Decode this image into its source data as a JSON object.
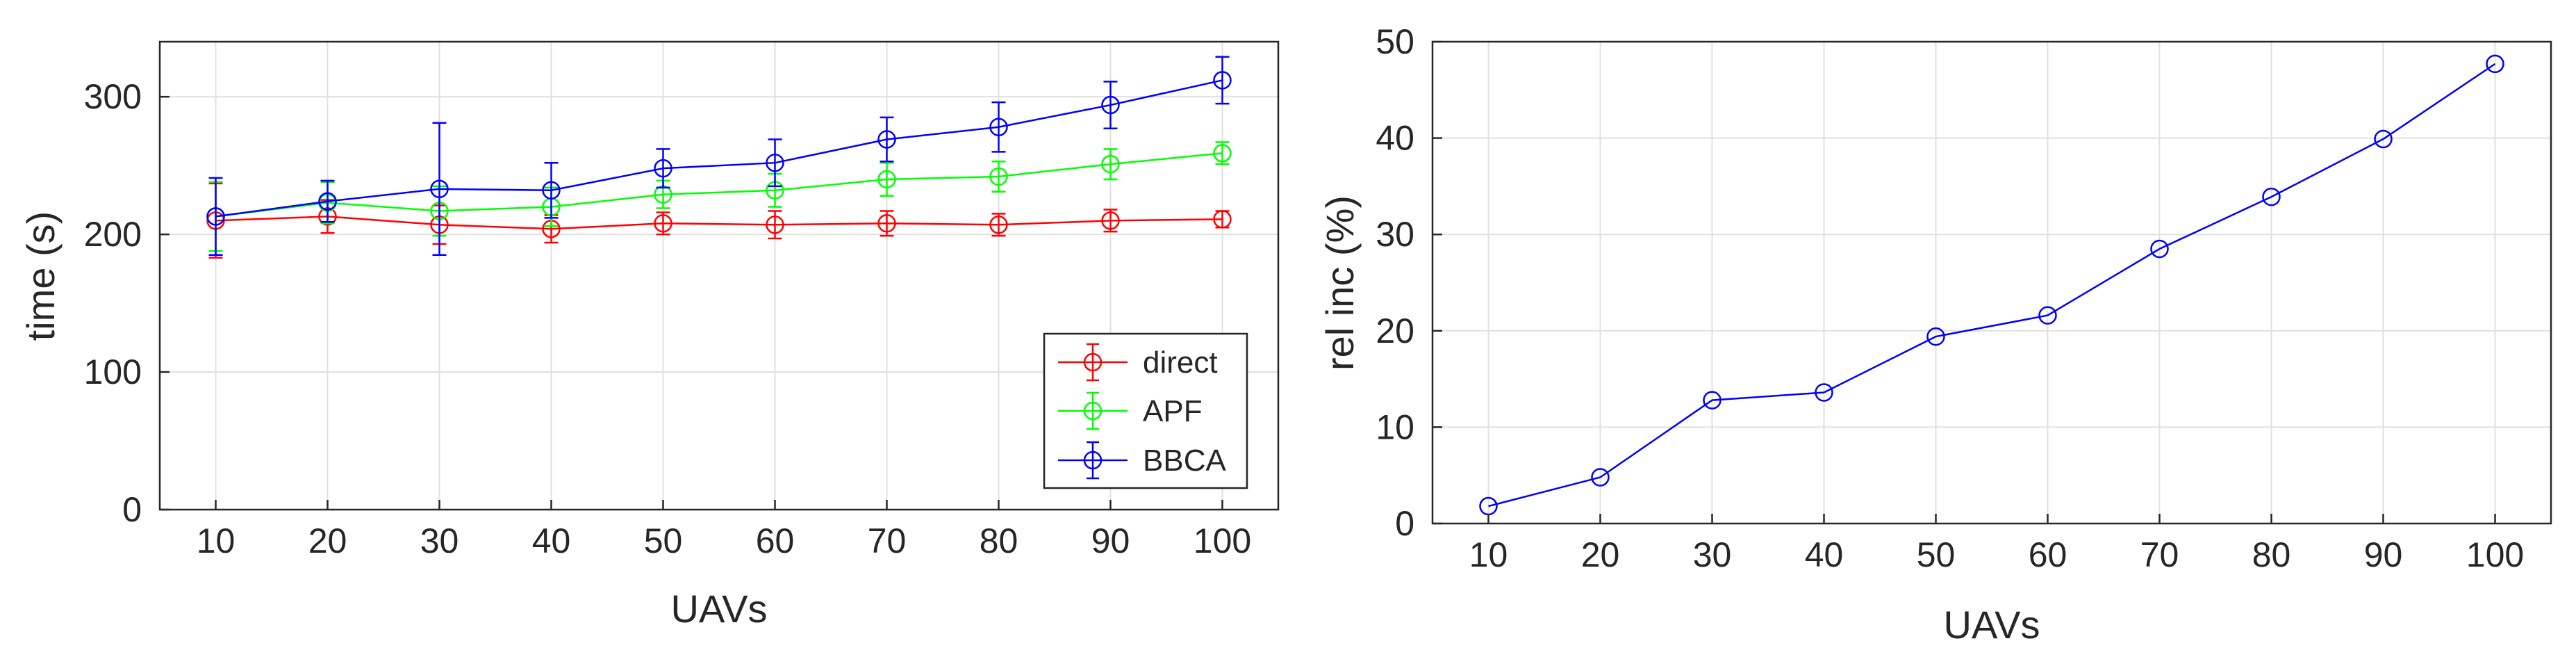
{
  "chart_data": [
    {
      "type": "line",
      "xlabel": "UAVs",
      "ylabel": "time (s)",
      "x": [
        10,
        20,
        30,
        40,
        50,
        60,
        70,
        80,
        90,
        100
      ],
      "xticks": [
        "10",
        "20",
        "30",
        "40",
        "50",
        "60",
        "70",
        "80",
        "90",
        "100"
      ],
      "xlim": [
        5,
        105
      ],
      "yticks": [
        "0",
        "100",
        "200",
        "300"
      ],
      "ylim": [
        0,
        340
      ],
      "grid": true,
      "legend_position": "bottom-right",
      "series": [
        {
          "name": "direct",
          "color": "#ff0000",
          "marker": "circle",
          "values": [
            210,
            213,
            207,
            204,
            208,
            207,
            208,
            207,
            210,
            211
          ],
          "errors": [
            27,
            12,
            14,
            10,
            8,
            10,
            9,
            8,
            8,
            6
          ]
        },
        {
          "name": "APF",
          "color": "#00ff00",
          "marker": "circle",
          "values": [
            213,
            223,
            217,
            220,
            229,
            232,
            240,
            242,
            251,
            259
          ],
          "errors": [
            25,
            15,
            18,
            14,
            10,
            12,
            12,
            11,
            11,
            8
          ]
        },
        {
          "name": "BBCA",
          "color": "#0000ff",
          "marker": "circle",
          "values": [
            213,
            224,
            233,
            232,
            248,
            252,
            269,
            278,
            294,
            312
          ],
          "errors": [
            28,
            15,
            48,
            20,
            14,
            17,
            16,
            18,
            17,
            17
          ]
        }
      ]
    },
    {
      "type": "line",
      "xlabel": "UAVs",
      "ylabel": "rel inc (%)",
      "x": [
        10,
        20,
        30,
        40,
        50,
        60,
        70,
        80,
        90,
        100
      ],
      "xticks": [
        "10",
        "20",
        "30",
        "40",
        "50",
        "60",
        "70",
        "80",
        "90",
        "100"
      ],
      "xlim": [
        5,
        105
      ],
      "yticks": [
        "0",
        "10",
        "20",
        "30",
        "40",
        "50"
      ],
      "ylim": [
        0,
        50
      ],
      "grid": true,
      "series": [
        {
          "name": "rel inc",
          "color": "#0000ff",
          "marker": "circle",
          "values": [
            1.8,
            4.8,
            12.8,
            13.6,
            19.4,
            21.6,
            28.5,
            33.9,
            39.9,
            47.7
          ]
        }
      ]
    }
  ]
}
